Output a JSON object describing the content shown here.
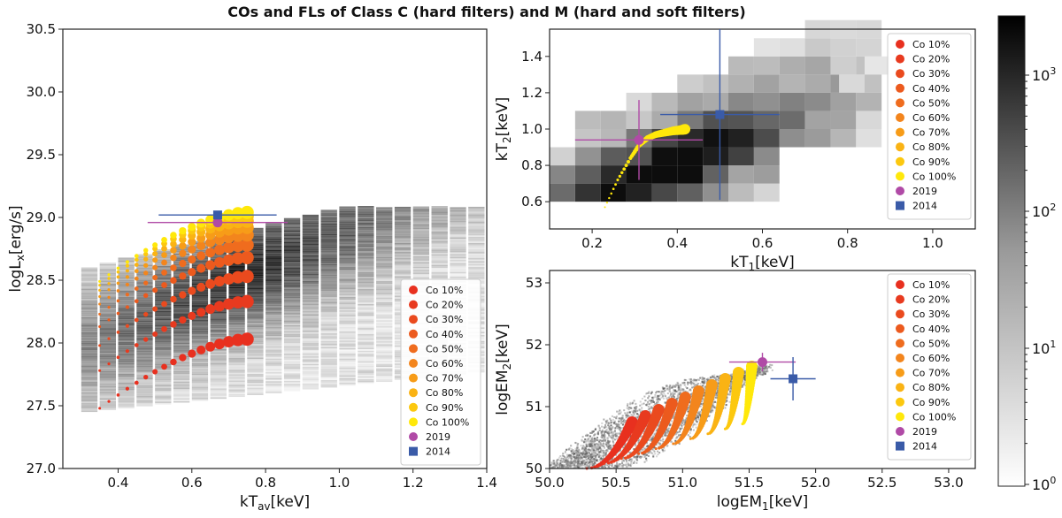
{
  "figure_title": "COs and FLs of Class C (hard filters) and M (hard and soft filters)",
  "legend_labels": [
    "Co 10%",
    "Co 20%",
    "Co 30%",
    "Co 40%",
    "Co 50%",
    "Co 60%",
    "Co 70%",
    "Co 80%",
    "Co 90%",
    "Co 100%",
    "2019",
    "2014"
  ],
  "legend_colors": [
    "#e8301f",
    "#e83a1f",
    "#ea4a1e",
    "#ec5a1e",
    "#ef6c1e",
    "#f3851d",
    "#f79c18",
    "#fab314",
    "#fcc80f",
    "#ffe80a",
    "#b04aa6",
    "#3a5ba8"
  ],
  "colorbar": {
    "labels": [
      "10^0",
      "10^1",
      "10^2",
      "10^3"
    ],
    "cmap": "gray"
  },
  "chart_data": [
    {
      "type": "scatter",
      "name": "luminosity-vs-kTav",
      "xlabel": "kT",
      "xlabel_sub": "av",
      "xlabel_unit": "[keV]",
      "ylabel": "logL",
      "ylabel_sub": "x",
      "ylabel_unit": "[erg/s]",
      "xlim": [
        0.25,
        1.4
      ],
      "ylim": [
        27.0,
        30.5
      ],
      "xticks": [
        0.4,
        0.6,
        0.8,
        1.0,
        1.2,
        1.4
      ],
      "yticks": [
        27.0,
        27.5,
        28.0,
        28.5,
        29.0,
        29.5,
        30.0,
        30.5
      ],
      "xtick_labels": [
        "0.4",
        "0.6",
        "0.8",
        "1.0",
        "1.2",
        "1.4"
      ],
      "ytick_labels": [
        "27.0",
        "27.5",
        "28.0",
        "28.5",
        "29.0",
        "29.5",
        "30.0",
        "30.5"
      ],
      "legend_position": "lower-right",
      "series_tracks": {
        "x_start": 0.35,
        "x_end": 0.75,
        "y_start": [
          27.48,
          27.78,
          27.98,
          28.13,
          28.23,
          28.31,
          28.37,
          28.42,
          28.46,
          28.49
        ],
        "y_end": [
          28.03,
          28.33,
          28.53,
          28.68,
          28.78,
          28.86,
          28.92,
          28.97,
          29.01,
          29.04
        ]
      },
      "points": [
        {
          "name": "2019",
          "x": 0.67,
          "y": 28.96,
          "xerr": 0.19,
          "yerr": 0.0
        },
        {
          "name": "2014",
          "x": 0.67,
          "y": 29.02,
          "xerr": 0.16,
          "yerr": 0.0
        }
      ]
    },
    {
      "type": "scatter",
      "name": "kT2-vs-kT1",
      "xlabel": "kT",
      "xlabel_sub": "1",
      "xlabel_unit": "[keV]",
      "ylabel": "kT",
      "ylabel_sub": "2",
      "ylabel_unit": "[keV]",
      "xlim": [
        0.1,
        1.1
      ],
      "ylim": [
        0.45,
        1.55
      ],
      "xticks": [
        0.2,
        0.4,
        0.6,
        0.8,
        1.0
      ],
      "yticks": [
        0.6,
        0.8,
        1.0,
        1.2,
        1.4
      ],
      "xtick_labels": [
        "0.2",
        "0.4",
        "0.6",
        "0.8",
        "1.0"
      ],
      "ytick_labels": [
        "0.6",
        "0.8",
        "1.0",
        "1.2",
        "1.4"
      ],
      "legend_position": "upper-right",
      "curve": {
        "x": [
          0.23,
          0.26,
          0.29,
          0.31,
          0.33,
          0.35,
          0.37,
          0.39,
          0.41,
          0.42
        ],
        "y": [
          0.57,
          0.72,
          0.84,
          0.91,
          0.95,
          0.97,
          0.98,
          0.99,
          0.995,
          1.0
        ]
      },
      "points": [
        {
          "name": "2019",
          "x": 0.31,
          "y": 0.94,
          "xerr": 0.15,
          "yerr": 0.22
        },
        {
          "name": "2014",
          "x": 0.5,
          "y": 1.08,
          "xerr": 0.14,
          "yerr": 0.47
        }
      ]
    },
    {
      "type": "scatter",
      "name": "logEM2-vs-logEM1",
      "xlabel": "logEM",
      "xlabel_sub": "1",
      "xlabel_unit": "[keV]",
      "ylabel": "logEM",
      "ylabel_sub": "2",
      "ylabel_unit": "[keV]",
      "xlim": [
        50.0,
        53.2
      ],
      "ylim": [
        50.0,
        53.2
      ],
      "xticks": [
        50.0,
        50.5,
        51.0,
        51.5,
        52.0,
        52.5,
        53.0
      ],
      "yticks": [
        50,
        51,
        52,
        53
      ],
      "xtick_labels": [
        "50.0",
        "50.5",
        "51.0",
        "51.5",
        "52.0",
        "52.5",
        "53.0"
      ],
      "ytick_labels": [
        "50",
        "51",
        "52",
        "53"
      ],
      "legend_position": "upper-right",
      "points": [
        {
          "name": "2019",
          "x": 51.6,
          "y": 51.72,
          "xerr": 0.25,
          "yerr": 0.15
        },
        {
          "name": "2014",
          "x": 51.83,
          "y": 51.45,
          "xerr": 0.17,
          "yerr": 0.35
        }
      ]
    }
  ]
}
